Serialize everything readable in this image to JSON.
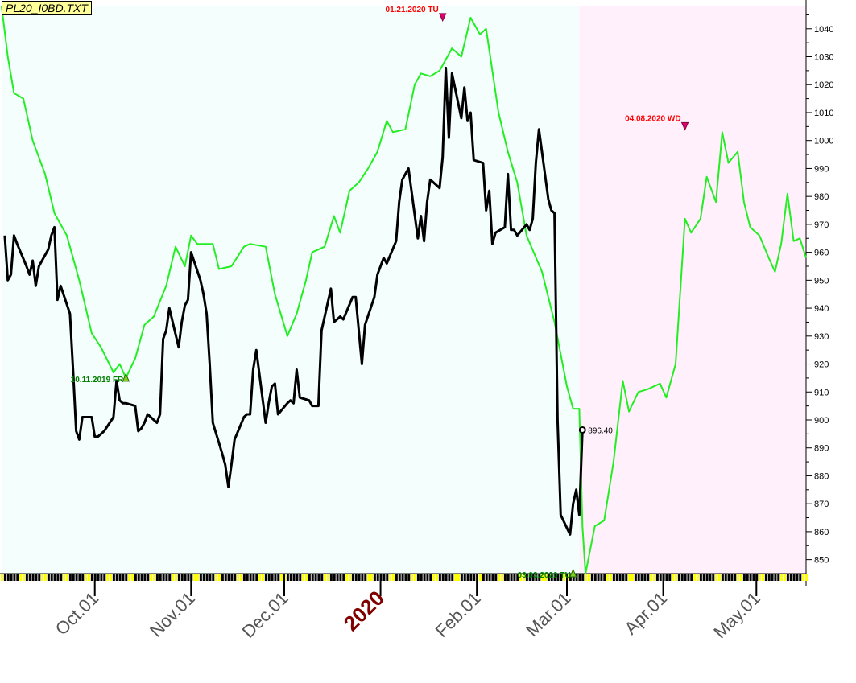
{
  "window": {
    "file_label": "PL20_I0BD.TXT"
  },
  "colors": {
    "history_bg": "#f4fffd",
    "forecast_bg": "#fff0fb",
    "actual_line": "#000000",
    "forecast_line": "#22ee22",
    "high_marker": "#e0006a",
    "low_marker": "#7fd01f",
    "high_text": "#ff0000",
    "low_text": "#008000",
    "year_label": "#800000",
    "axis_text": "#555555"
  },
  "chart_data": {
    "type": "line",
    "x_start": "2019-09-01",
    "x_end": "2020-05-17",
    "forecast_start": "2020-03-05",
    "y_axis": {
      "min": 845,
      "max": 1048,
      "ticks": [
        850,
        860,
        870,
        880,
        890,
        900,
        910,
        920,
        930,
        940,
        950,
        960,
        970,
        980,
        990,
        1000,
        1010,
        1020,
        1030,
        1040
      ]
    },
    "x_ticks": [
      {
        "label": "Oct.01",
        "date": "2019-10-01",
        "emphasis": false
      },
      {
        "label": "Nov.01",
        "date": "2019-11-01",
        "emphasis": false
      },
      {
        "label": "Dec.01",
        "date": "2019-12-01",
        "emphasis": false
      },
      {
        "label": "2020",
        "date": "2020-01-01",
        "emphasis": true
      },
      {
        "label": "Feb.01",
        "date": "2020-02-01",
        "emphasis": false
      },
      {
        "label": "Mar.01",
        "date": "2020-03-01",
        "emphasis": false
      },
      {
        "label": "Apr.01",
        "date": "2020-04-01",
        "emphasis": false
      },
      {
        "label": "May.01",
        "date": "2020-05-01",
        "emphasis": false
      }
    ],
    "series": [
      {
        "role": "actual",
        "points": [
          [
            "2019-09-02",
            966
          ],
          [
            "2019-09-03",
            950
          ],
          [
            "2019-09-04",
            952
          ],
          [
            "2019-09-05",
            966
          ],
          [
            "2019-09-06",
            963
          ],
          [
            "2019-09-09",
            955
          ],
          [
            "2019-09-10",
            952
          ],
          [
            "2019-09-11",
            957
          ],
          [
            "2019-09-12",
            948
          ],
          [
            "2019-09-13",
            955
          ],
          [
            "2019-09-16",
            961
          ],
          [
            "2019-09-17",
            966
          ],
          [
            "2019-09-18",
            969
          ],
          [
            "2019-09-19",
            943
          ],
          [
            "2019-09-20",
            948
          ],
          [
            "2019-09-23",
            938
          ],
          [
            "2019-09-24",
            918
          ],
          [
            "2019-09-25",
            896
          ],
          [
            "2019-09-26",
            893
          ],
          [
            "2019-09-27",
            901
          ],
          [
            "2019-09-30",
            901
          ],
          [
            "2019-10-01",
            894
          ],
          [
            "2019-10-02",
            894
          ],
          [
            "2019-10-03",
            895
          ],
          [
            "2019-10-04",
            896
          ],
          [
            "2019-10-07",
            901
          ],
          [
            "2019-10-08",
            914
          ],
          [
            "2019-10-09",
            907
          ],
          [
            "2019-10-10",
            906
          ],
          [
            "2019-10-11",
            906
          ],
          [
            "2019-10-14",
            905
          ],
          [
            "2019-10-15",
            896
          ],
          [
            "2019-10-16",
            897
          ],
          [
            "2019-10-17",
            899
          ],
          [
            "2019-10-18",
            902
          ],
          [
            "2019-10-21",
            899
          ],
          [
            "2019-10-22",
            902
          ],
          [
            "2019-10-23",
            929
          ],
          [
            "2019-10-24",
            932
          ],
          [
            "2019-10-25",
            940
          ],
          [
            "2019-10-28",
            926
          ],
          [
            "2019-10-29",
            935
          ],
          [
            "2019-10-30",
            941
          ],
          [
            "2019-10-31",
            943
          ],
          [
            "2019-11-01",
            960
          ],
          [
            "2019-11-04",
            950
          ],
          [
            "2019-11-05",
            945
          ],
          [
            "2019-11-06",
            938
          ],
          [
            "2019-11-07",
            920
          ],
          [
            "2019-11-08",
            899
          ],
          [
            "2019-11-11",
            888
          ],
          [
            "2019-11-12",
            884
          ],
          [
            "2019-11-13",
            876
          ],
          [
            "2019-11-14",
            884
          ],
          [
            "2019-11-15",
            893
          ],
          [
            "2019-11-18",
            901
          ],
          [
            "2019-11-19",
            902
          ],
          [
            "2019-11-20",
            902
          ],
          [
            "2019-11-21",
            918
          ],
          [
            "2019-11-22",
            925
          ],
          [
            "2019-11-25",
            899
          ],
          [
            "2019-11-26",
            906
          ],
          [
            "2019-11-27",
            912
          ],
          [
            "2019-11-28",
            913
          ],
          [
            "2019-11-29",
            902
          ],
          [
            "2019-12-02",
            906
          ],
          [
            "2019-12-03",
            907
          ],
          [
            "2019-12-04",
            906
          ],
          [
            "2019-12-05",
            918
          ],
          [
            "2019-12-06",
            908
          ],
          [
            "2019-12-09",
            907
          ],
          [
            "2019-12-10",
            905
          ],
          [
            "2019-12-11",
            905
          ],
          [
            "2019-12-12",
            905
          ],
          [
            "2019-12-13",
            932
          ],
          [
            "2019-12-16",
            947
          ],
          [
            "2019-12-17",
            935
          ],
          [
            "2019-12-18",
            936
          ],
          [
            "2019-12-19",
            937
          ],
          [
            "2019-12-20",
            936
          ],
          [
            "2019-12-23",
            944
          ],
          [
            "2019-12-24",
            944
          ],
          [
            "2019-12-26",
            920
          ],
          [
            "2019-12-27",
            934
          ],
          [
            "2019-12-30",
            944
          ],
          [
            "2019-12-31",
            952
          ],
          [
            "2020-01-02",
            958
          ],
          [
            "2020-01-03",
            956
          ],
          [
            "2020-01-06",
            964
          ],
          [
            "2020-01-07",
            978
          ],
          [
            "2020-01-08",
            986
          ],
          [
            "2020-01-09",
            988
          ],
          [
            "2020-01-10",
            990
          ],
          [
            "2020-01-13",
            965
          ],
          [
            "2020-01-14",
            973
          ],
          [
            "2020-01-15",
            964
          ],
          [
            "2020-01-16",
            978
          ],
          [
            "2020-01-17",
            986
          ],
          [
            "2020-01-20",
            983
          ],
          [
            "2020-01-21",
            994
          ],
          [
            "2020-01-22",
            1026
          ],
          [
            "2020-01-23",
            1001
          ],
          [
            "2020-01-24",
            1024
          ],
          [
            "2020-01-27",
            1008
          ],
          [
            "2020-01-28",
            1019
          ],
          [
            "2020-01-29",
            1007
          ],
          [
            "2020-01-30",
            1010
          ],
          [
            "2020-01-31",
            993
          ],
          [
            "2020-02-03",
            992
          ],
          [
            "2020-02-04",
            975
          ],
          [
            "2020-02-05",
            982
          ],
          [
            "2020-02-06",
            963
          ],
          [
            "2020-02-07",
            967
          ],
          [
            "2020-02-10",
            969
          ],
          [
            "2020-02-11",
            988
          ],
          [
            "2020-02-12",
            968
          ],
          [
            "2020-02-13",
            968
          ],
          [
            "2020-02-14",
            966
          ],
          [
            "2020-02-17",
            970
          ],
          [
            "2020-02-18",
            968
          ],
          [
            "2020-02-19",
            972
          ],
          [
            "2020-02-20",
            992
          ],
          [
            "2020-02-21",
            1004
          ],
          [
            "2020-02-24",
            979
          ],
          [
            "2020-02-25",
            975
          ],
          [
            "2020-02-26",
            974
          ],
          [
            "2020-02-27",
            900
          ],
          [
            "2020-02-28",
            866
          ],
          [
            "2020-03-02",
            859
          ],
          [
            "2020-03-03",
            870
          ],
          [
            "2020-03-04",
            875
          ],
          [
            "2020-03-05",
            866
          ],
          [
            "2020-03-06",
            896.4
          ]
        ]
      },
      {
        "role": "forecast",
        "points": [
          [
            "2019-09-01",
            1048
          ],
          [
            "2019-09-03",
            1030
          ],
          [
            "2019-09-05",
            1017
          ],
          [
            "2019-09-08",
            1015
          ],
          [
            "2019-09-11",
            1000
          ],
          [
            "2019-09-15",
            988
          ],
          [
            "2019-09-18",
            974
          ],
          [
            "2019-09-22",
            966
          ],
          [
            "2019-09-26",
            950
          ],
          [
            "2019-09-30",
            931
          ],
          [
            "2019-10-03",
            926
          ],
          [
            "2019-10-07",
            917
          ],
          [
            "2019-10-09",
            920
          ],
          [
            "2019-10-11",
            915
          ],
          [
            "2019-10-14",
            922
          ],
          [
            "2019-10-17",
            934
          ],
          [
            "2019-10-20",
            937
          ],
          [
            "2019-10-24",
            948
          ],
          [
            "2019-10-27",
            962
          ],
          [
            "2019-10-30",
            955
          ],
          [
            "2019-11-01",
            966
          ],
          [
            "2019-11-03",
            963
          ],
          [
            "2019-11-08",
            963
          ],
          [
            "2019-11-10",
            954
          ],
          [
            "2019-11-14",
            955
          ],
          [
            "2019-11-18",
            962
          ],
          [
            "2019-11-20",
            963
          ],
          [
            "2019-11-25",
            962
          ],
          [
            "2019-11-28",
            945
          ],
          [
            "2019-12-02",
            930
          ],
          [
            "2019-12-05",
            938
          ],
          [
            "2019-12-08",
            950
          ],
          [
            "2019-12-10",
            960
          ],
          [
            "2019-12-14",
            962
          ],
          [
            "2019-12-17",
            973
          ],
          [
            "2019-12-19",
            967
          ],
          [
            "2019-12-22",
            982
          ],
          [
            "2019-12-25",
            985
          ],
          [
            "2019-12-28",
            990
          ],
          [
            "2019-12-31",
            996
          ],
          [
            "2020-01-03",
            1007
          ],
          [
            "2020-01-05",
            1003
          ],
          [
            "2020-01-09",
            1004
          ],
          [
            "2020-01-12",
            1020
          ],
          [
            "2020-01-14",
            1024
          ],
          [
            "2020-01-17",
            1023
          ],
          [
            "2020-01-20",
            1025
          ],
          [
            "2020-01-24",
            1033
          ],
          [
            "2020-01-27",
            1030
          ],
          [
            "2020-01-30",
            1044
          ],
          [
            "2020-02-02",
            1038
          ],
          [
            "2020-02-04",
            1040
          ],
          [
            "2020-02-08",
            1010
          ],
          [
            "2020-02-11",
            996
          ],
          [
            "2020-02-14",
            985
          ],
          [
            "2020-02-17",
            966
          ],
          [
            "2020-02-22",
            953
          ],
          [
            "2020-02-26",
            935
          ],
          [
            "2020-03-01",
            912
          ],
          [
            "2020-03-03",
            904
          ],
          [
            "2020-03-05",
            904
          ],
          [
            "2020-03-06",
            862
          ],
          [
            "2020-03-07",
            845
          ],
          [
            "2020-03-10",
            862
          ],
          [
            "2020-03-13",
            864
          ],
          [
            "2020-03-16",
            885
          ],
          [
            "2020-03-19",
            914
          ],
          [
            "2020-03-21",
            903
          ],
          [
            "2020-03-24",
            910
          ],
          [
            "2020-03-27",
            911
          ],
          [
            "2020-03-31",
            913
          ],
          [
            "2020-04-02",
            908
          ],
          [
            "2020-04-05",
            920
          ],
          [
            "2020-04-08",
            972
          ],
          [
            "2020-04-10",
            967
          ],
          [
            "2020-04-13",
            972
          ],
          [
            "2020-04-15",
            987
          ],
          [
            "2020-04-18",
            978
          ],
          [
            "2020-04-20",
            1003
          ],
          [
            "2020-04-22",
            992
          ],
          [
            "2020-04-25",
            996
          ],
          [
            "2020-04-27",
            978
          ],
          [
            "2020-04-29",
            969
          ],
          [
            "2020-05-02",
            966
          ],
          [
            "2020-05-05",
            958
          ],
          [
            "2020-05-07",
            953
          ],
          [
            "2020-05-09",
            963
          ],
          [
            "2020-05-11",
            981
          ],
          [
            "2020-05-13",
            964
          ],
          [
            "2020-05-15",
            965
          ],
          [
            "2020-05-17",
            958
          ]
        ]
      }
    ],
    "annotations": [
      {
        "text": "10.11.2019 FR",
        "date": "2019-10-11",
        "value": 915,
        "kind": "low"
      },
      {
        "text": "01.21.2020 TU",
        "date": "2020-01-21",
        "value": 1044,
        "kind": "high"
      },
      {
        "text": "03.03.2020 TU",
        "date": "2020-03-03",
        "value": 845,
        "kind": "low"
      },
      {
        "text": "04.08.2020 WD",
        "date": "2020-04-08",
        "value": 1005,
        "kind": "high"
      }
    ],
    "last_value_label": "896.40"
  }
}
